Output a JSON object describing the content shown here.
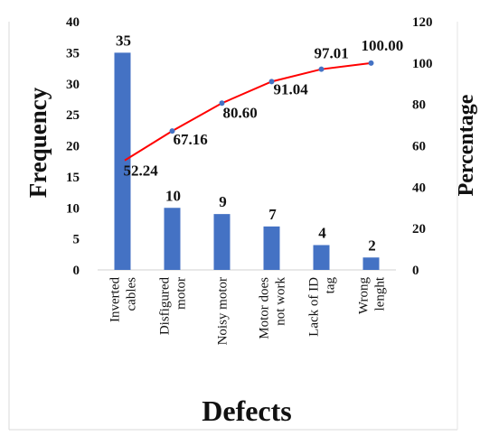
{
  "chart_data": {
    "type": "bar",
    "categories": [
      [
        "Inverted",
        "cables"
      ],
      [
        "Disfigured",
        "motor"
      ],
      [
        "Noisy motor"
      ],
      [
        "Motor does",
        "not work"
      ],
      [
        "Lack of ID",
        "tag"
      ],
      [
        "Wrong",
        "lenght"
      ]
    ],
    "series": [
      {
        "type": "bar",
        "axis": "left",
        "values": [
          35,
          10,
          9,
          7,
          4,
          2
        ],
        "color": "#4472C4"
      },
      {
        "type": "line",
        "axis": "right",
        "values": [
          52.24,
          67.16,
          80.6,
          91.04,
          97.01,
          100.0
        ],
        "labels": [
          "52.24",
          "67.16",
          "80.60",
          "91.04",
          "97.01",
          "100.00"
        ],
        "color": "#FF0000",
        "marker_color": "#4472C4"
      }
    ],
    "xlabel": "Defects",
    "ylabel": "Frequency",
    "y2label": "Percentage",
    "ylim": [
      0,
      40
    ],
    "yticks": [
      "0",
      "5",
      "10",
      "15",
      "20",
      "25",
      "30",
      "35",
      "40"
    ],
    "y2lim": [
      0,
      120
    ],
    "y2ticks": [
      "0",
      "20",
      "40",
      "60",
      "80",
      "100",
      "120"
    ],
    "grid": false,
    "legend": false
  }
}
